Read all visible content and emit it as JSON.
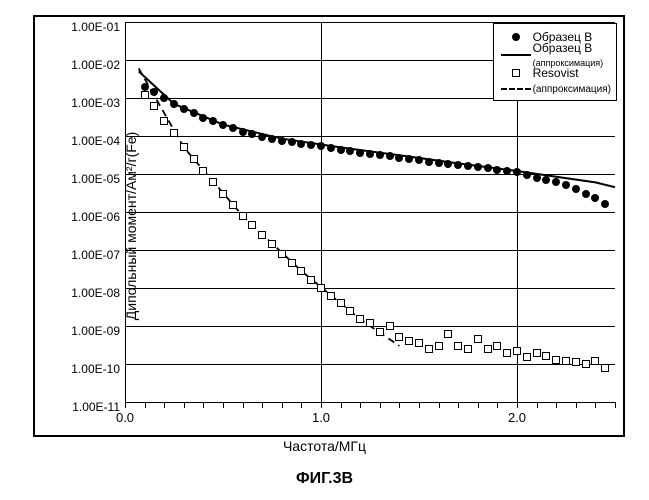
{
  "caption": "ФИГ.3B",
  "xlabel": "Частота/МГц",
  "ylabel": "Дипольный момент/Ам²/г(Fe)",
  "type": "scatter-log",
  "background_color": "#ffffff",
  "grid_color": "#000000",
  "x_axis": {
    "lim": [
      0.0,
      2.5
    ],
    "ticks": [
      0.0,
      1.0,
      2.0
    ],
    "tick_labels": [
      "0.0",
      "1.0",
      "2.0"
    ],
    "minor_step": 0.1
  },
  "y_axis": {
    "scale": "log",
    "exp_lim": [
      -11,
      -1
    ],
    "tick_labels": [
      "1.00E-11",
      "1.00E-10",
      "1.00E-09",
      "1.00E-08",
      "1.00E-07",
      "1.00E-06",
      "1.00E-05",
      "1.00E-04",
      "1.00E-03",
      "1.00E-02",
      "1.00E-01"
    ]
  },
  "legend": {
    "items": [
      {
        "kind": "marker-circle",
        "label": "Образец В"
      },
      {
        "kind": "line-solid",
        "label": "Образец В",
        "sublabel": "(аппроксимация)"
      },
      {
        "kind": "marker-square",
        "label": "Resovist"
      },
      {
        "kind": "line-dash",
        "label": "(аппроксимация)",
        "sublabel": ""
      }
    ]
  },
  "series": {
    "sampleB": {
      "marker": "circle",
      "color": "#000000",
      "x": [
        0.1,
        0.15,
        0.2,
        0.25,
        0.3,
        0.35,
        0.4,
        0.45,
        0.5,
        0.55,
        0.6,
        0.65,
        0.7,
        0.75,
        0.8,
        0.85,
        0.9,
        0.95,
        1.0,
        1.05,
        1.1,
        1.15,
        1.2,
        1.25,
        1.3,
        1.35,
        1.4,
        1.45,
        1.5,
        1.55,
        1.6,
        1.65,
        1.7,
        1.75,
        1.8,
        1.85,
        1.9,
        1.95,
        2.0,
        2.05,
        2.1,
        2.15,
        2.2,
        2.25,
        2.3,
        2.35,
        2.4,
        2.45
      ],
      "y": [
        0.002,
        0.0014,
        0.001,
        0.0007,
        0.0005,
        0.0004,
        0.0003,
        0.00025,
        0.0002,
        0.00016,
        0.00013,
        0.00011,
        9.5e-05,
        8.5e-05,
        7.5e-05,
        6.8e-05,
        6.2e-05,
        5.7e-05,
        5.3e-05,
        4.8e-05,
        4.4e-05,
        4e-05,
        3.6e-05,
        3.3e-05,
        3.1e-05,
        2.9e-05,
        2.7e-05,
        2.5e-05,
        2.3e-05,
        2.1e-05,
        2e-05,
        1.8e-05,
        1.7e-05,
        1.6e-05,
        1.5e-05,
        1.4e-05,
        1.3e-05,
        1.2e-05,
        1.1e-05,
        9.5e-06,
        8e-06,
        7e-06,
        6e-06,
        5e-06,
        4e-06,
        3e-06,
        2.3e-06,
        1.6e-06
      ]
    },
    "sampleB_fit": {
      "style": "solid",
      "color": "#000000",
      "width": 2,
      "x": [
        0.07,
        0.25,
        0.5,
        0.8,
        1.1,
        1.4,
        1.7,
        2.0,
        2.2,
        2.4,
        2.5
      ],
      "y": [
        0.005,
        0.0007,
        0.0002,
        8.5e-05,
        5e-05,
        3.1e-05,
        1.9e-05,
        1.2e-05,
        8.5e-06,
        6e-06,
        4.5e-06
      ]
    },
    "resovist": {
      "marker": "square",
      "color": "#000000",
      "x": [
        0.1,
        0.15,
        0.2,
        0.25,
        0.3,
        0.35,
        0.4,
        0.45,
        0.5,
        0.55,
        0.6,
        0.65,
        0.7,
        0.75,
        0.8,
        0.85,
        0.9,
        0.95,
        1.0,
        1.05,
        1.1,
        1.15,
        1.2,
        1.25,
        1.3,
        1.35,
        1.4,
        1.45,
        1.5,
        1.55,
        1.6,
        1.65,
        1.7,
        1.75,
        1.8,
        1.85,
        1.9,
        1.95,
        2.0,
        2.05,
        2.1,
        2.15,
        2.2,
        2.25,
        2.3,
        2.35,
        2.4,
        2.45
      ],
      "y": [
        0.0012,
        0.0006,
        0.00025,
        0.00012,
        5e-05,
        2.5e-05,
        1.2e-05,
        6e-06,
        3e-06,
        1.5e-06,
        8e-07,
        4.5e-07,
        2.5e-07,
        1.4e-07,
        8e-08,
        4.5e-08,
        2.8e-08,
        1.6e-08,
        1e-08,
        6e-09,
        4e-09,
        2.5e-09,
        1.5e-09,
        1.2e-09,
        7e-10,
        1e-09,
        5e-10,
        4e-10,
        3.5e-10,
        2.5e-10,
        3e-10,
        6e-10,
        3e-10,
        2.5e-10,
        4.5e-10,
        2.5e-10,
        3e-10,
        2e-10,
        2.2e-10,
        1.5e-10,
        2e-10,
        1.6e-10,
        1.3e-10,
        1.2e-10,
        1.1e-10,
        1e-10,
        1.2e-10,
        8e-11
      ]
    },
    "resovist_fit": {
      "style": "dash",
      "color": "#000000",
      "width": 1.8,
      "x": [
        0.07,
        0.3,
        0.6,
        0.9,
        1.2,
        1.4
      ],
      "y": [
        0.006,
        5e-05,
        8e-07,
        2.8e-08,
        1.5e-09,
        3e-10
      ]
    }
  },
  "label_fontsize": 14,
  "tick_fontsize": 12
}
